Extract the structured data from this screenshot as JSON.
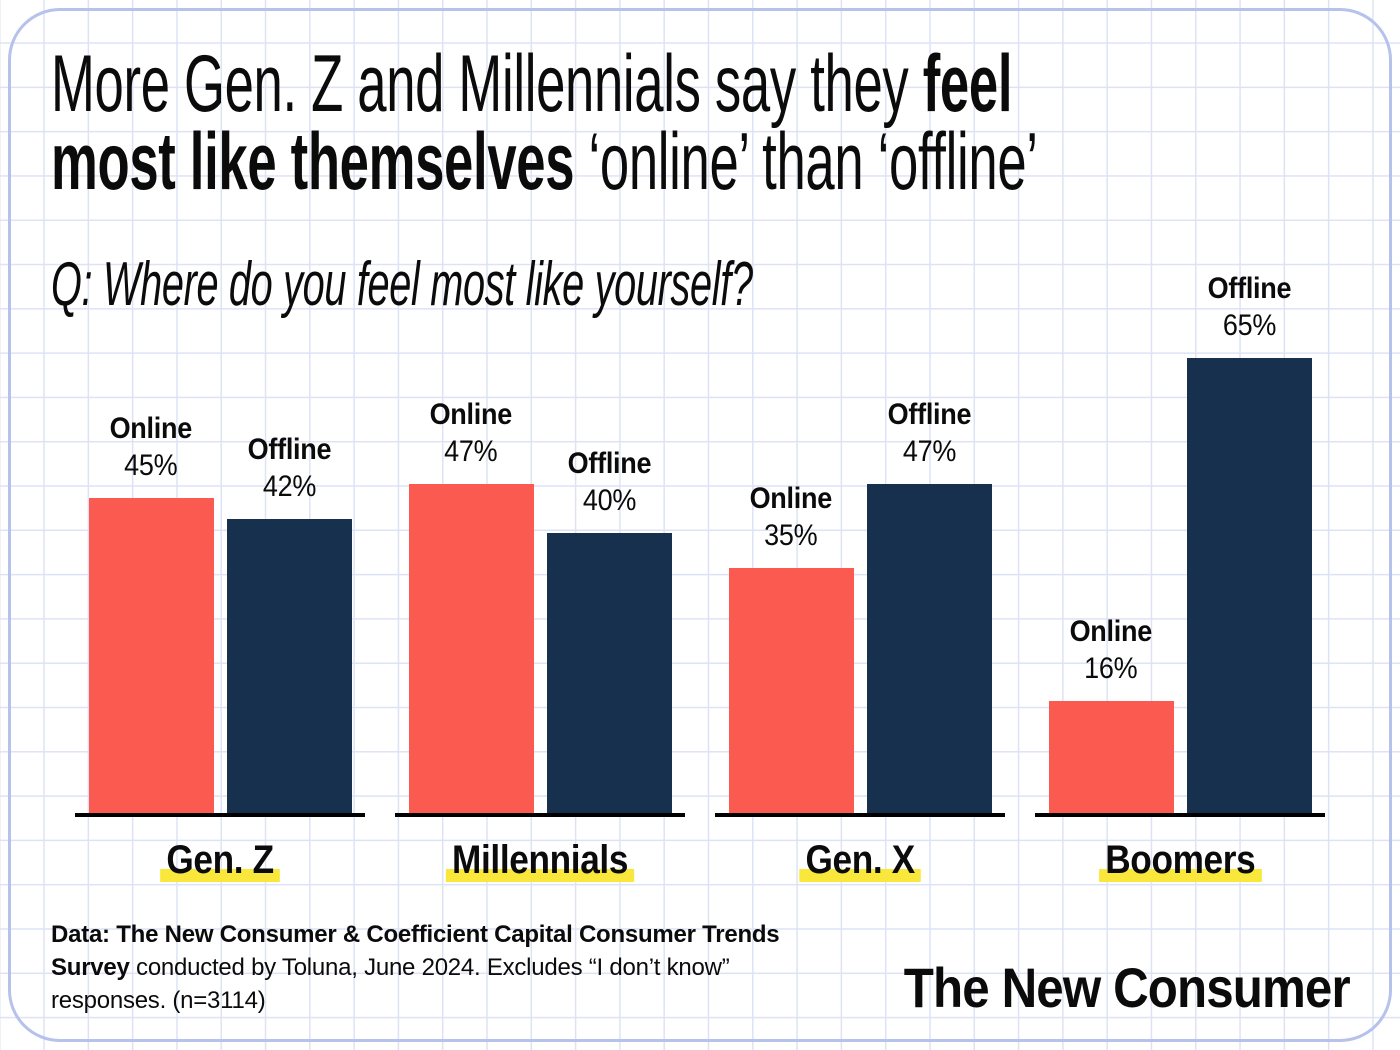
{
  "title": {
    "line1_regular": "More Gen. Z and Millennials say they ",
    "line1_bold": "feel",
    "line2_bold": "most like themselves",
    "line2_regular": " ‘online’ than ‘offline’"
  },
  "question": "Q: Where do you feel most like yourself?",
  "chart_data": {
    "type": "bar",
    "categories": [
      "Gen. Z",
      "Millennials",
      "Gen. X",
      "Boomers"
    ],
    "series": [
      {
        "name": "Online",
        "color": "#FB5A50",
        "values": [
          45,
          47,
          35,
          16
        ]
      },
      {
        "name": "Offline",
        "color": "#16304E",
        "values": [
          42,
          40,
          47,
          65
        ]
      }
    ],
    "value_suffix": "%",
    "ylim": [
      0,
      70
    ],
    "grid": false,
    "legend_position": "labels-above-bars",
    "category_highlight_color": "#F9E83B"
  },
  "footer": {
    "line1_bold": "Data: The New Consumer & Coefficient Capital Consumer Trends",
    "line2_bold": "Survey",
    "line2_regular": " conducted by Toluna, June 2024. Excludes “I don’t know”",
    "line3_regular": "responses. (n=3114)"
  },
  "brand": "The New Consumer",
  "colors": {
    "online": "#FB5A50",
    "offline": "#16304E",
    "highlight": "#F9E83B",
    "grid_line": "#DDE3F5",
    "card_border": "#B6C2EC",
    "axis_line": "#000000",
    "text": "#0B0B0B"
  }
}
